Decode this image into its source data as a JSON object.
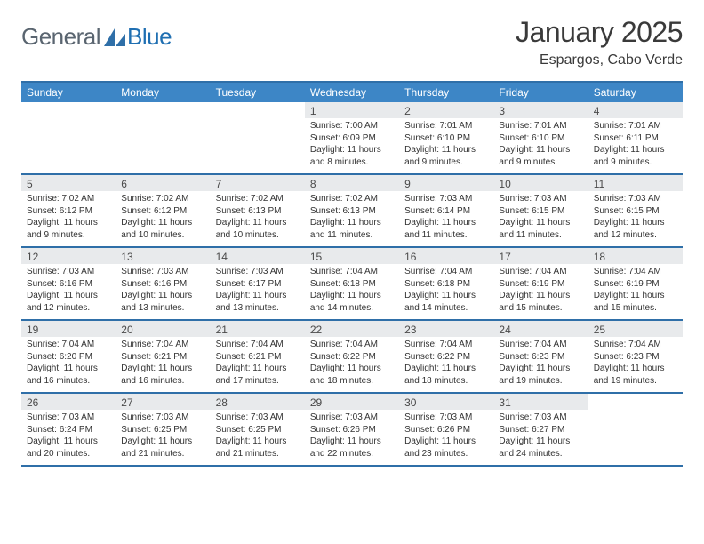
{
  "brand": {
    "general": "General",
    "blue": "Blue"
  },
  "title": "January 2025",
  "subtitle": "Espargos, Cabo Verde",
  "colors": {
    "header_bar": "#3d86c6",
    "rule": "#2f6fa8",
    "daynum_bg": "#e8eaec",
    "logo_gray": "#5a6570",
    "logo_blue": "#1f6fb2"
  },
  "dayNames": [
    "Sunday",
    "Monday",
    "Tuesday",
    "Wednesday",
    "Thursday",
    "Friday",
    "Saturday"
  ],
  "weeks": [
    [
      {
        "day": "",
        "sunrise": "",
        "sunset": "",
        "daylight1": "",
        "daylight2": ""
      },
      {
        "day": "",
        "sunrise": "",
        "sunset": "",
        "daylight1": "",
        "daylight2": ""
      },
      {
        "day": "",
        "sunrise": "",
        "sunset": "",
        "daylight1": "",
        "daylight2": ""
      },
      {
        "day": "1",
        "sunrise": "Sunrise: 7:00 AM",
        "sunset": "Sunset: 6:09 PM",
        "daylight1": "Daylight: 11 hours",
        "daylight2": "and 8 minutes."
      },
      {
        "day": "2",
        "sunrise": "Sunrise: 7:01 AM",
        "sunset": "Sunset: 6:10 PM",
        "daylight1": "Daylight: 11 hours",
        "daylight2": "and 9 minutes."
      },
      {
        "day": "3",
        "sunrise": "Sunrise: 7:01 AM",
        "sunset": "Sunset: 6:10 PM",
        "daylight1": "Daylight: 11 hours",
        "daylight2": "and 9 minutes."
      },
      {
        "day": "4",
        "sunrise": "Sunrise: 7:01 AM",
        "sunset": "Sunset: 6:11 PM",
        "daylight1": "Daylight: 11 hours",
        "daylight2": "and 9 minutes."
      }
    ],
    [
      {
        "day": "5",
        "sunrise": "Sunrise: 7:02 AM",
        "sunset": "Sunset: 6:12 PM",
        "daylight1": "Daylight: 11 hours",
        "daylight2": "and 9 minutes."
      },
      {
        "day": "6",
        "sunrise": "Sunrise: 7:02 AM",
        "sunset": "Sunset: 6:12 PM",
        "daylight1": "Daylight: 11 hours",
        "daylight2": "and 10 minutes."
      },
      {
        "day": "7",
        "sunrise": "Sunrise: 7:02 AM",
        "sunset": "Sunset: 6:13 PM",
        "daylight1": "Daylight: 11 hours",
        "daylight2": "and 10 minutes."
      },
      {
        "day": "8",
        "sunrise": "Sunrise: 7:02 AM",
        "sunset": "Sunset: 6:13 PM",
        "daylight1": "Daylight: 11 hours",
        "daylight2": "and 11 minutes."
      },
      {
        "day": "9",
        "sunrise": "Sunrise: 7:03 AM",
        "sunset": "Sunset: 6:14 PM",
        "daylight1": "Daylight: 11 hours",
        "daylight2": "and 11 minutes."
      },
      {
        "day": "10",
        "sunrise": "Sunrise: 7:03 AM",
        "sunset": "Sunset: 6:15 PM",
        "daylight1": "Daylight: 11 hours",
        "daylight2": "and 11 minutes."
      },
      {
        "day": "11",
        "sunrise": "Sunrise: 7:03 AM",
        "sunset": "Sunset: 6:15 PM",
        "daylight1": "Daylight: 11 hours",
        "daylight2": "and 12 minutes."
      }
    ],
    [
      {
        "day": "12",
        "sunrise": "Sunrise: 7:03 AM",
        "sunset": "Sunset: 6:16 PM",
        "daylight1": "Daylight: 11 hours",
        "daylight2": "and 12 minutes."
      },
      {
        "day": "13",
        "sunrise": "Sunrise: 7:03 AM",
        "sunset": "Sunset: 6:16 PM",
        "daylight1": "Daylight: 11 hours",
        "daylight2": "and 13 minutes."
      },
      {
        "day": "14",
        "sunrise": "Sunrise: 7:03 AM",
        "sunset": "Sunset: 6:17 PM",
        "daylight1": "Daylight: 11 hours",
        "daylight2": "and 13 minutes."
      },
      {
        "day": "15",
        "sunrise": "Sunrise: 7:04 AM",
        "sunset": "Sunset: 6:18 PM",
        "daylight1": "Daylight: 11 hours",
        "daylight2": "and 14 minutes."
      },
      {
        "day": "16",
        "sunrise": "Sunrise: 7:04 AM",
        "sunset": "Sunset: 6:18 PM",
        "daylight1": "Daylight: 11 hours",
        "daylight2": "and 14 minutes."
      },
      {
        "day": "17",
        "sunrise": "Sunrise: 7:04 AM",
        "sunset": "Sunset: 6:19 PM",
        "daylight1": "Daylight: 11 hours",
        "daylight2": "and 15 minutes."
      },
      {
        "day": "18",
        "sunrise": "Sunrise: 7:04 AM",
        "sunset": "Sunset: 6:19 PM",
        "daylight1": "Daylight: 11 hours",
        "daylight2": "and 15 minutes."
      }
    ],
    [
      {
        "day": "19",
        "sunrise": "Sunrise: 7:04 AM",
        "sunset": "Sunset: 6:20 PM",
        "daylight1": "Daylight: 11 hours",
        "daylight2": "and 16 minutes."
      },
      {
        "day": "20",
        "sunrise": "Sunrise: 7:04 AM",
        "sunset": "Sunset: 6:21 PM",
        "daylight1": "Daylight: 11 hours",
        "daylight2": "and 16 minutes."
      },
      {
        "day": "21",
        "sunrise": "Sunrise: 7:04 AM",
        "sunset": "Sunset: 6:21 PM",
        "daylight1": "Daylight: 11 hours",
        "daylight2": "and 17 minutes."
      },
      {
        "day": "22",
        "sunrise": "Sunrise: 7:04 AM",
        "sunset": "Sunset: 6:22 PM",
        "daylight1": "Daylight: 11 hours",
        "daylight2": "and 18 minutes."
      },
      {
        "day": "23",
        "sunrise": "Sunrise: 7:04 AM",
        "sunset": "Sunset: 6:22 PM",
        "daylight1": "Daylight: 11 hours",
        "daylight2": "and 18 minutes."
      },
      {
        "day": "24",
        "sunrise": "Sunrise: 7:04 AM",
        "sunset": "Sunset: 6:23 PM",
        "daylight1": "Daylight: 11 hours",
        "daylight2": "and 19 minutes."
      },
      {
        "day": "25",
        "sunrise": "Sunrise: 7:04 AM",
        "sunset": "Sunset: 6:23 PM",
        "daylight1": "Daylight: 11 hours",
        "daylight2": "and 19 minutes."
      }
    ],
    [
      {
        "day": "26",
        "sunrise": "Sunrise: 7:03 AM",
        "sunset": "Sunset: 6:24 PM",
        "daylight1": "Daylight: 11 hours",
        "daylight2": "and 20 minutes."
      },
      {
        "day": "27",
        "sunrise": "Sunrise: 7:03 AM",
        "sunset": "Sunset: 6:25 PM",
        "daylight1": "Daylight: 11 hours",
        "daylight2": "and 21 minutes."
      },
      {
        "day": "28",
        "sunrise": "Sunrise: 7:03 AM",
        "sunset": "Sunset: 6:25 PM",
        "daylight1": "Daylight: 11 hours",
        "daylight2": "and 21 minutes."
      },
      {
        "day": "29",
        "sunrise": "Sunrise: 7:03 AM",
        "sunset": "Sunset: 6:26 PM",
        "daylight1": "Daylight: 11 hours",
        "daylight2": "and 22 minutes."
      },
      {
        "day": "30",
        "sunrise": "Sunrise: 7:03 AM",
        "sunset": "Sunset: 6:26 PM",
        "daylight1": "Daylight: 11 hours",
        "daylight2": "and 23 minutes."
      },
      {
        "day": "31",
        "sunrise": "Sunrise: 7:03 AM",
        "sunset": "Sunset: 6:27 PM",
        "daylight1": "Daylight: 11 hours",
        "daylight2": "and 24 minutes."
      },
      {
        "day": "",
        "sunrise": "",
        "sunset": "",
        "daylight1": "",
        "daylight2": ""
      }
    ]
  ]
}
